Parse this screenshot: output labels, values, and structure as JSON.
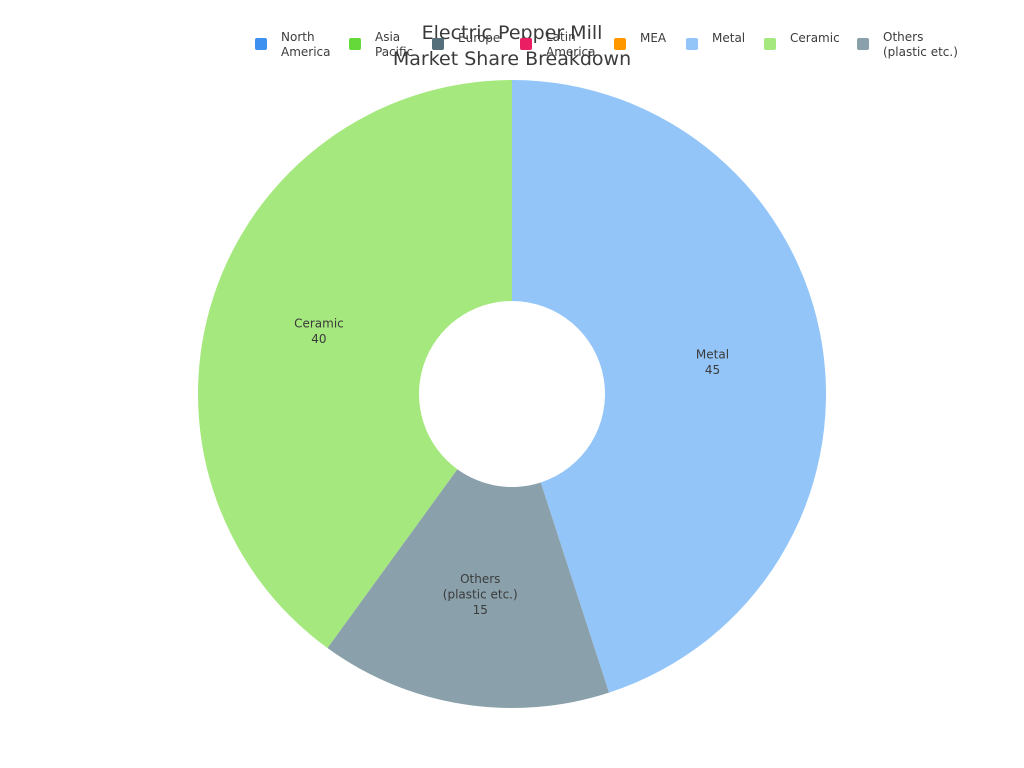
{
  "chart_data": {
    "type": "pie",
    "donut": true,
    "title": "Electric Pepper Mill Market Share Breakdown",
    "title_lines": [
      "Electric Pepper Mill",
      "Market Share Breakdown"
    ],
    "legend_placement": "top",
    "legend": [
      {
        "lines": [
          "North",
          "America"
        ],
        "color": "#3d8ff0"
      },
      {
        "lines": [
          "Asia",
          "Pacific"
        ],
        "color": "#66d93a"
      },
      {
        "lines": [
          "Europe"
        ],
        "color": "#546e7a"
      },
      {
        "lines": [
          "Latin",
          "America"
        ],
        "color": "#e91e63"
      },
      {
        "lines": [
          "MEA"
        ],
        "color": "#ff9800"
      },
      {
        "lines": [
          "Metal"
        ],
        "color": "#93c5f8"
      },
      {
        "lines": [
          "Ceramic"
        ],
        "color": "#a5e87e"
      },
      {
        "lines": [
          "Others",
          "(plastic etc.)"
        ],
        "color": "#8aa1ab"
      }
    ],
    "slices": [
      {
        "label_lines": [
          "Metal"
        ],
        "value": 45,
        "color": "#93c5f8"
      },
      {
        "label_lines": [
          "Others",
          "(plastic etc.)"
        ],
        "value": 15,
        "color": "#8aa1ab"
      },
      {
        "label_lines": [
          "Ceramic"
        ],
        "value": 40,
        "color": "#a5e87e"
      }
    ]
  }
}
